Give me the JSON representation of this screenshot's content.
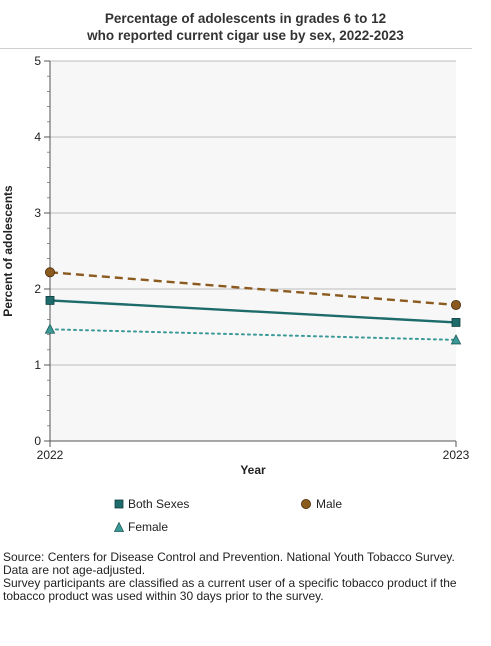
{
  "chart_data": {
    "type": "line",
    "title_line1": "Percentage of adolescents in grades 6 to 12",
    "title_line2": "who reported current cigar use by sex, 2022-2023",
    "xlabel": "Year",
    "ylabel": "Percent of adolescents",
    "x": [
      "2022",
      "2023"
    ],
    "ylim": [
      0,
      5
    ],
    "yticks": [
      "0",
      "1",
      "2",
      "3",
      "4",
      "5"
    ],
    "grid": true,
    "legend_position": "bottom",
    "series": [
      {
        "name": "Both Sexes",
        "values": [
          1.85,
          1.56
        ],
        "color": "#1e6b6b",
        "dash": "solid",
        "marker": "square"
      },
      {
        "name": "Male",
        "values": [
          2.22,
          1.79
        ],
        "color": "#8b5a1e",
        "dash": "dashed",
        "marker": "circle"
      },
      {
        "name": "Female",
        "values": [
          1.47,
          1.33
        ],
        "color": "#3a9a98",
        "dash": "dotted",
        "marker": "triangle"
      }
    ]
  },
  "source": {
    "line1": "Source: Centers for Disease Control and Prevention. National Youth Tobacco Survey.",
    "line2": "Data are not age-adjusted.",
    "line3": "Survey participants are classified as a current user of a specific tobacco product if the",
    "line4": "tobacco product was used within 30 days prior to the survey."
  }
}
